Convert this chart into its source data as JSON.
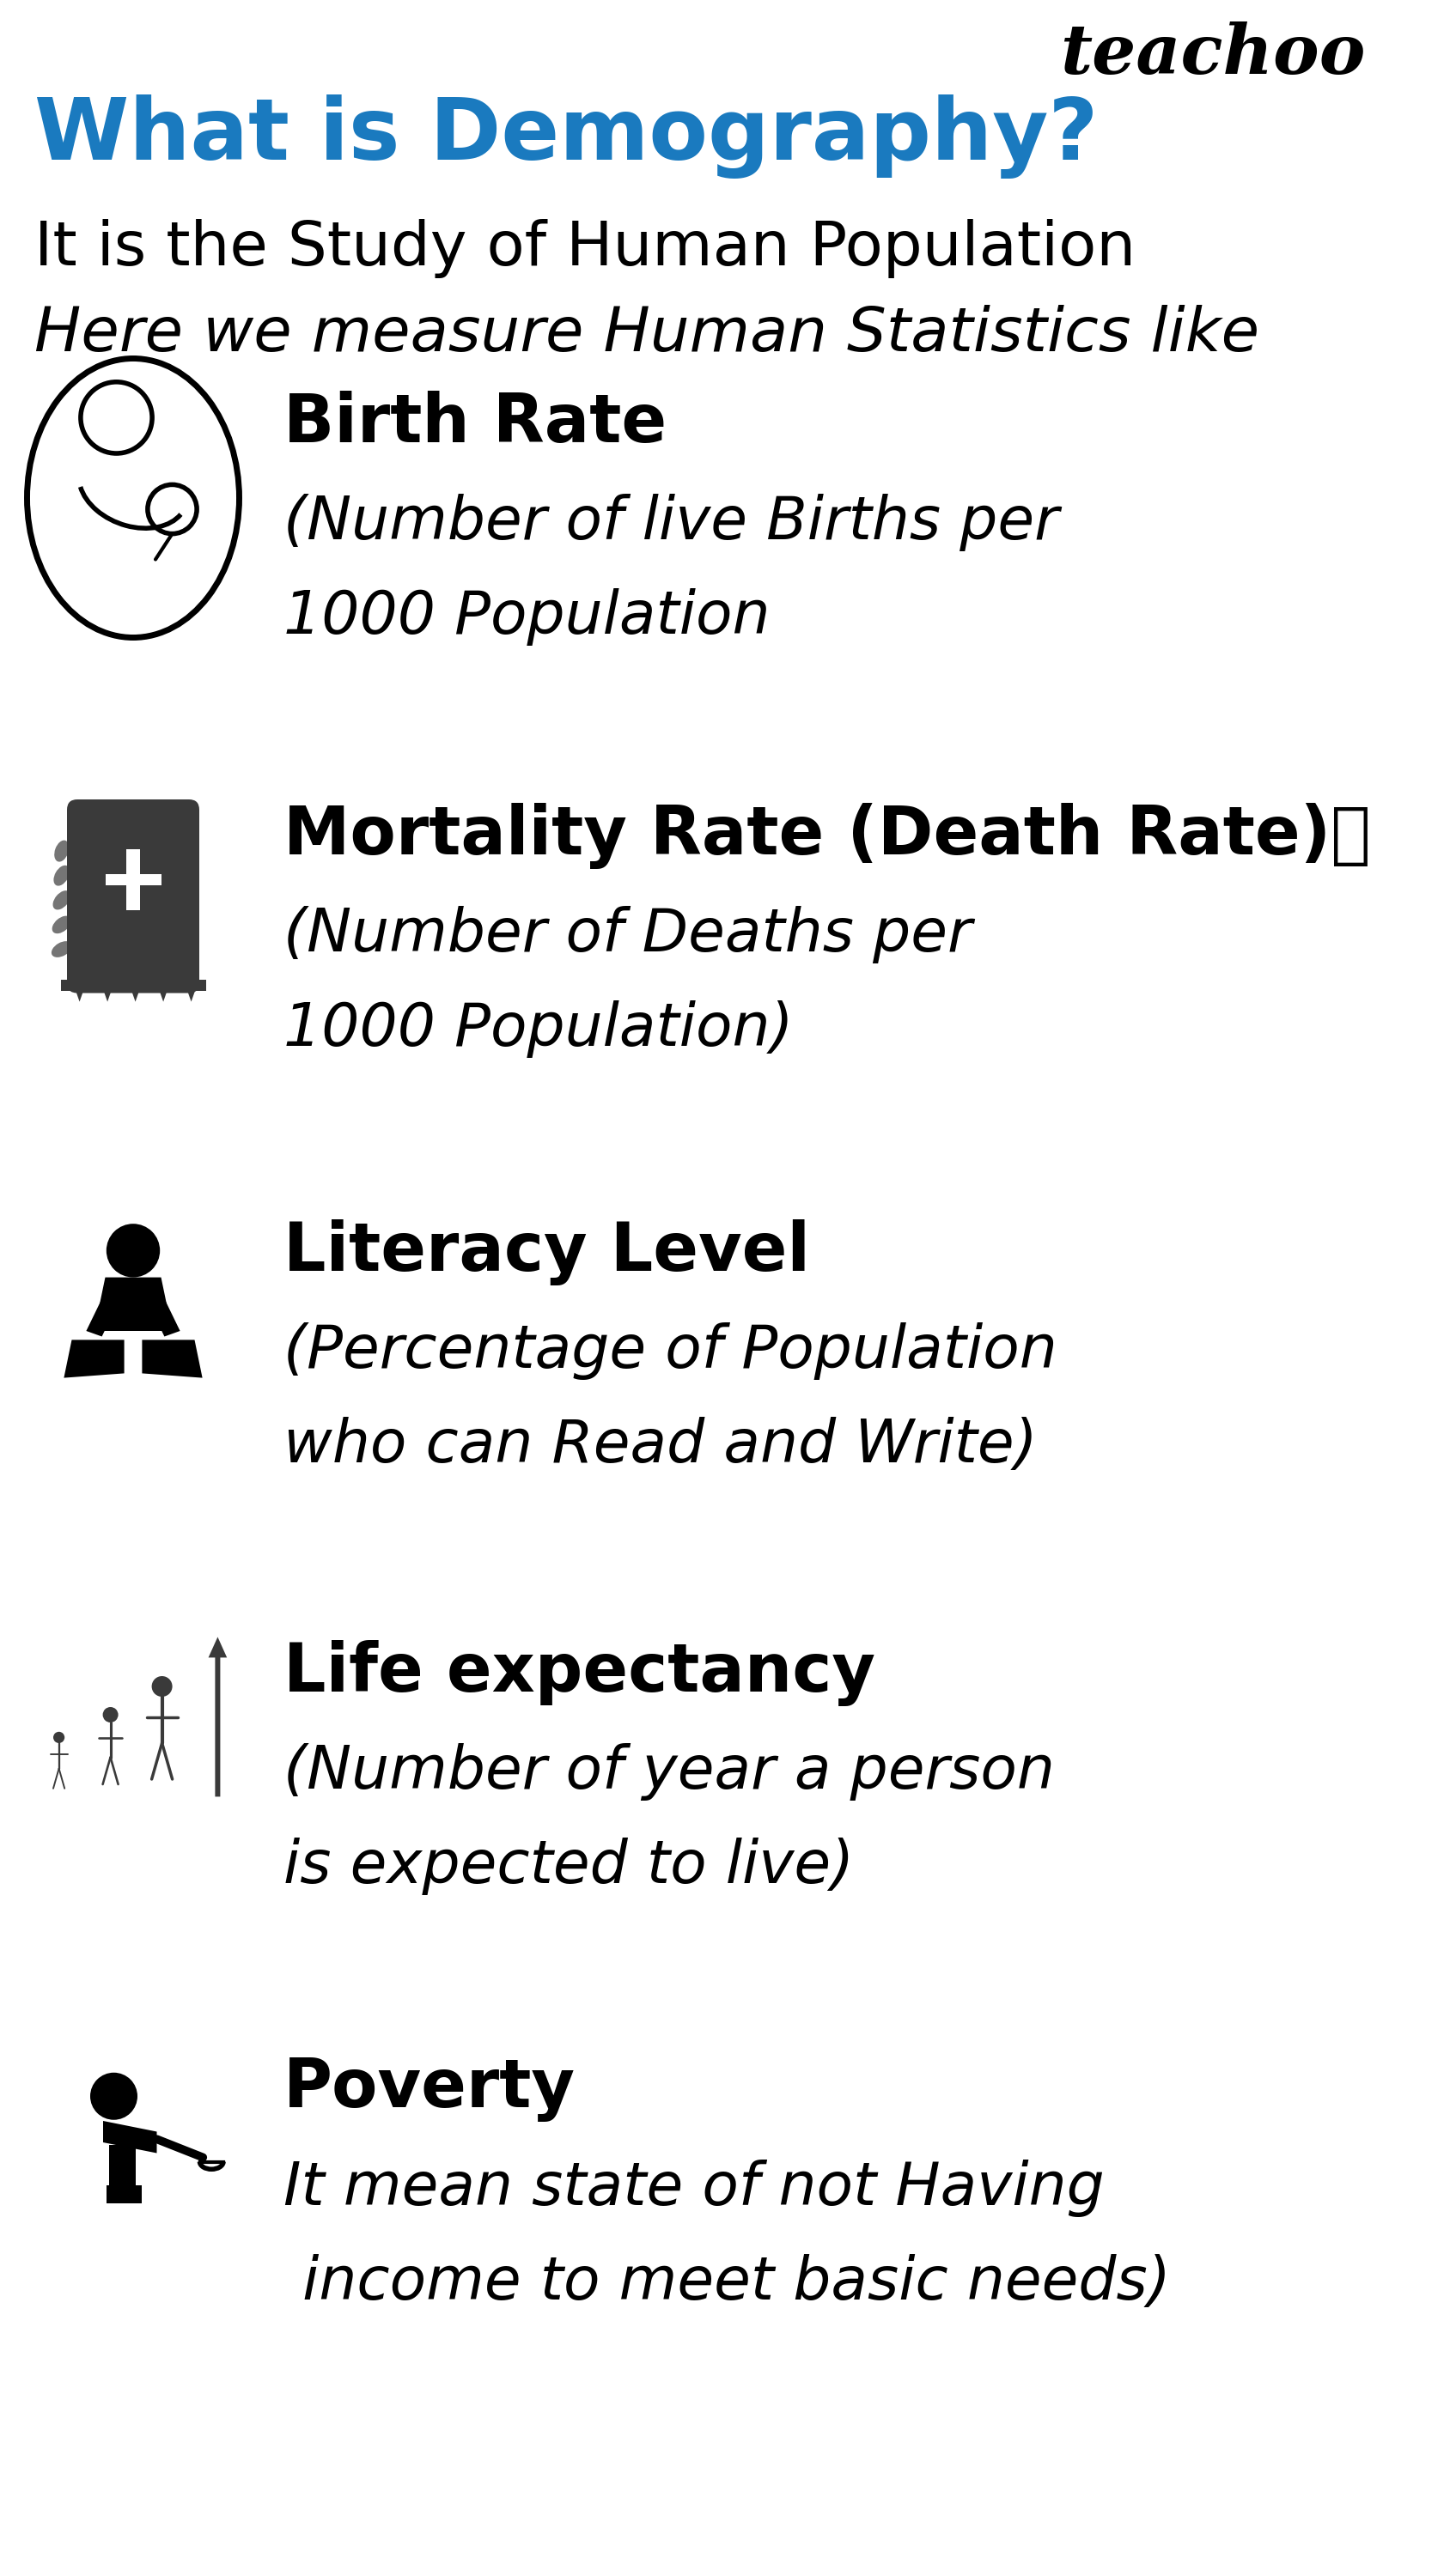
{
  "bg_color": "#ffffff",
  "teachoo_text": "teachoo",
  "title": "What is Demography?",
  "title_color": "#1a7abf",
  "subtitle1": "It is the Study of Human Population",
  "subtitle2": "Here we measure Human Statistics like",
  "items": [
    {
      "heading": "Birth Rate",
      "desc_line1": "(Number of live Births per",
      "desc_line2": "1000 Population",
      "icon": "birth"
    },
    {
      "heading": "Mortality Rate (Death Rate)⧸",
      "desc_line1": "(Number of Deaths per",
      "desc_line2": "1000 Population)",
      "icon": "death"
    },
    {
      "heading": "Literacy Level",
      "desc_line1": "(Percentage of Population",
      "desc_line2": "who can Read and Write)",
      "icon": "literacy"
    },
    {
      "heading": "Life expectancy",
      "desc_line1": "(Number of year a person",
      "desc_line2": "is expected to live)",
      "icon": "life"
    },
    {
      "heading": "Poverty",
      "desc_line1": "It mean state of not Having",
      "desc_line2": " income to meet basic needs)",
      "icon": "poverty"
    }
  ],
  "teachoo_fontsize": 58,
  "title_fontsize": 72,
  "subtitle_fontsize": 52,
  "heading_fontsize": 56,
  "desc_fontsize": 50
}
